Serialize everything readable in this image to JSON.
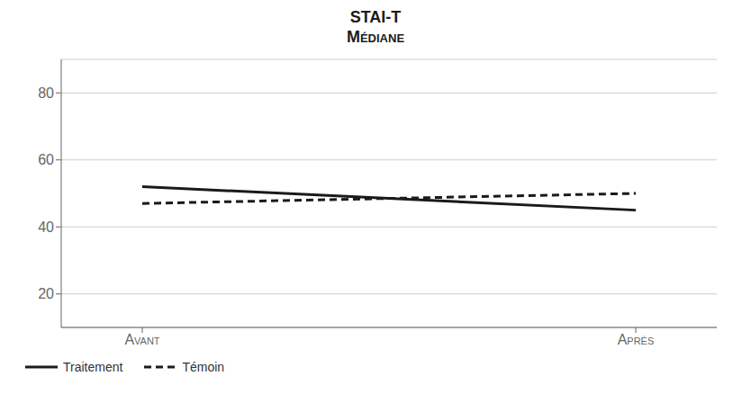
{
  "chart_data": {
    "type": "line",
    "title": "STAI-T",
    "subtitle": "Médiane",
    "categories": [
      "Avant",
      "Après"
    ],
    "series": [
      {
        "name": "Traitement",
        "color": "#1a1a1a",
        "line_style": "solid",
        "values": [
          52,
          45
        ]
      },
      {
        "name": "Témoin",
        "color": "#1a1a1a",
        "line_style": "dashed",
        "values": [
          47,
          50
        ]
      }
    ],
    "ylim": [
      10,
      90
    ],
    "yticks": [
      20,
      40,
      60,
      80
    ],
    "grid": true,
    "legend": "lower left"
  }
}
